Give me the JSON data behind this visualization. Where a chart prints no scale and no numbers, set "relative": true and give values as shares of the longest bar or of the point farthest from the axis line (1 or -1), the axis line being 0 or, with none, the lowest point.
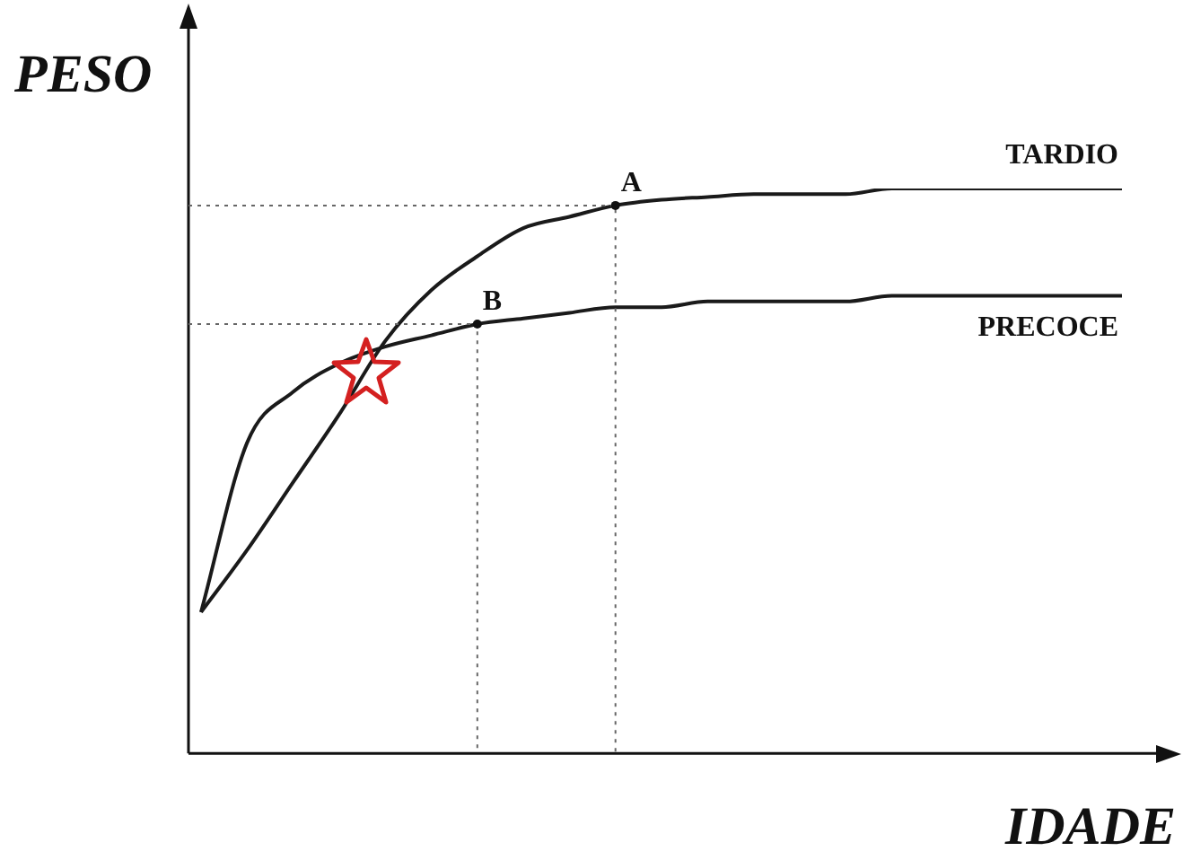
{
  "chart_data": {
    "type": "line",
    "relative": true,
    "xlabel": "IDADE",
    "ylabel": "PESO",
    "categories": [
      null,
      null,
      null,
      null,
      null,
      null,
      null,
      null,
      null,
      null,
      null,
      null,
      null,
      null,
      null,
      null,
      null,
      null,
      null,
      null,
      null
    ],
    "series": [
      {
        "name": "TARDIO",
        "color": "#1a1a1a",
        "values": [
          0.25,
          0.36,
          0.48,
          0.6,
          0.73,
          0.82,
          0.88,
          0.93,
          0.95,
          0.97,
          0.98,
          0.985,
          0.99,
          0.99,
          0.99,
          1,
          1,
          1,
          1,
          1,
          1
        ]
      },
      {
        "name": "PRECOCE",
        "color": "#1a1a1a",
        "values": [
          0.25,
          0.55,
          0.64,
          0.69,
          0.72,
          0.74,
          0.76,
          0.77,
          0.78,
          0.79,
          0.79,
          0.8,
          0.8,
          0.8,
          0.8,
          0.81,
          0.81,
          0.81,
          0.81,
          0.81,
          0.81
        ]
      }
    ],
    "ref_lines": [
      {
        "axis": "y",
        "value": 0.97,
        "label": "A",
        "line_style": "dotted"
      },
      {
        "axis": "y",
        "value": 0.76,
        "label": "B",
        "line_style": "dotted"
      }
    ],
    "legend": false,
    "marker": "none",
    "line_style": "solid"
  }
}
